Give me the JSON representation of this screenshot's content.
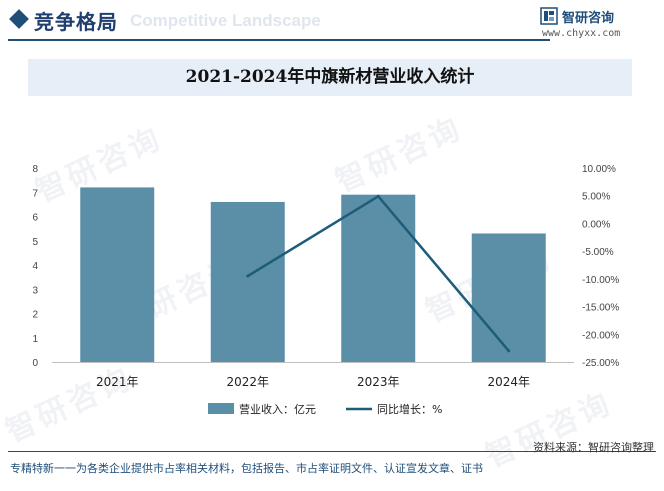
{
  "header": {
    "title": "竞争格局",
    "subtitle": "Competitive Landscape",
    "brand_name": "智研咨询",
    "brand_url": "www.chyxx.com"
  },
  "chart_data": {
    "type": "bar",
    "title": "2021-2024年中旗新材营业收入统计",
    "categories": [
      "2021年",
      "2022年",
      "2023年",
      "2024年"
    ],
    "series": [
      {
        "name": "营业收入：亿元",
        "type": "bar",
        "axis": "left",
        "values": [
          7.2,
          6.6,
          6.9,
          5.3
        ]
      },
      {
        "name": "同比增长：%",
        "type": "line",
        "axis": "right",
        "values": [
          null,
          -9.5,
          4.9,
          -23.0
        ]
      }
    ],
    "y_left": {
      "min": 0,
      "max": 8,
      "ticks": [
        "0",
        "1",
        "2",
        "3",
        "4",
        "5",
        "6",
        "7",
        "8"
      ]
    },
    "y_right": {
      "min": -25,
      "max": 10,
      "ticks": [
        "10.00%",
        "5.00%",
        "0.00%",
        "-5.00%",
        "-10.00%",
        "-15.00%",
        "-20.00%",
        "-25.00%"
      ]
    },
    "grid": false,
    "legend": "bottom",
    "colors": {
      "bar": "#5b8fa7",
      "line": "#1d5d7a"
    }
  },
  "footer": {
    "source": "资料来源：智研咨询整理",
    "note": "专精特新一一为各类企业提供市占率相关材料，包括报告、市占率证明文件、认证宣发文章、证书"
  },
  "watermarks": [
    "智研咨询",
    "智研咨询",
    "智研咨询",
    "智研咨询",
    "智研咨询",
    "智研咨询"
  ]
}
